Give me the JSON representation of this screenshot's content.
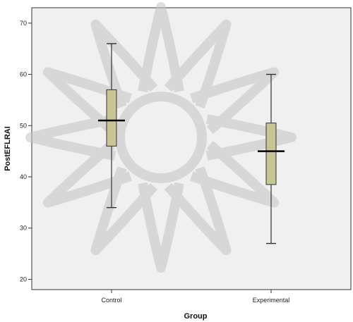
{
  "chart_data": {
    "type": "boxplot",
    "title": "",
    "xlabel": "Group",
    "ylabel": "PostEFLRAI",
    "ylim": [
      18,
      73
    ],
    "yticks": [
      20,
      30,
      40,
      50,
      60,
      70
    ],
    "grid": false,
    "legend": "none",
    "categories": [
      "Control",
      "Experimental"
    ],
    "boxes": [
      {
        "category": "Control",
        "min": 34,
        "q1": 46,
        "median": 51,
        "q3": 57,
        "max": 66
      },
      {
        "category": "Experimental",
        "min": 27,
        "q1": 38.5,
        "median": 45,
        "q3": 50.5,
        "max": 60
      }
    ],
    "colors": {
      "box_fill": "#c9c493",
      "box_stroke": "#333333",
      "median": "#000000",
      "plot_background": "#f0f0f0"
    }
  }
}
